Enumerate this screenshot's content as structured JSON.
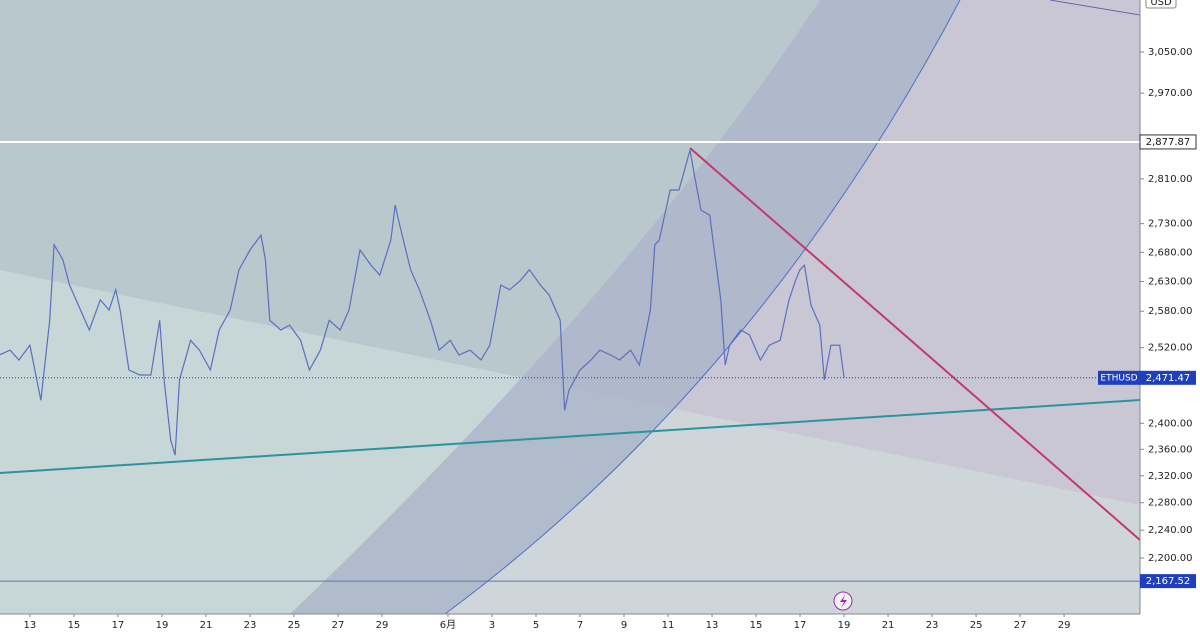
{
  "chart_data": {
    "type": "line",
    "y_axis_label": "USD",
    "log_scale": true,
    "ylim": [
      2122,
      3154
    ],
    "yticks": [
      {
        "value": 3050,
        "label": "3,050.00"
      },
      {
        "value": 2970,
        "label": "2,970.00"
      },
      {
        "value": 2810,
        "label": "2,810.00"
      },
      {
        "value": 2730,
        "label": "2,730.00"
      },
      {
        "value": 2680,
        "label": "2,680.00"
      },
      {
        "value": 2630,
        "label": "2,630.00"
      },
      {
        "value": 2580,
        "label": "2,580.00"
      },
      {
        "value": 2520,
        "label": "2,520.00"
      },
      {
        "value": 2400,
        "label": "2,400.00"
      },
      {
        "value": 2360,
        "label": "2,360.00"
      },
      {
        "value": 2320,
        "label": "2,320.00"
      },
      {
        "value": 2280,
        "label": "2,280.00"
      },
      {
        "value": 2240,
        "label": "2,240.00"
      },
      {
        "value": 2200,
        "label": "2,200.00"
      }
    ],
    "xlim": [
      -1.36,
      50.45
    ],
    "xticks": [
      {
        "value": 0,
        "label": "13"
      },
      {
        "value": 2,
        "label": "15"
      },
      {
        "value": 4,
        "label": "17"
      },
      {
        "value": 6,
        "label": "19"
      },
      {
        "value": 8,
        "label": "21"
      },
      {
        "value": 10,
        "label": "23"
      },
      {
        "value": 12,
        "label": "25"
      },
      {
        "value": 14,
        "label": "27"
      },
      {
        "value": 16,
        "label": "29"
      },
      {
        "value": 19,
        "label": "6月"
      },
      {
        "value": 21,
        "label": "3"
      },
      {
        "value": 23,
        "label": "5"
      },
      {
        "value": 25,
        "label": "7"
      },
      {
        "value": 27,
        "label": "9"
      },
      {
        "value": 29,
        "label": "11"
      },
      {
        "value": 31,
        "label": "13"
      },
      {
        "value": 33,
        "label": "15"
      },
      {
        "value": 35,
        "label": "17"
      },
      {
        "value": 37,
        "label": "19"
      },
      {
        "value": 39,
        "label": "21"
      },
      {
        "value": 41,
        "label": "23"
      },
      {
        "value": 43,
        "label": "25"
      },
      {
        "value": 45,
        "label": "27"
      },
      {
        "value": 47,
        "label": "29"
      }
    ],
    "x": [
      -1.4,
      -0.9,
      -0.5,
      0,
      0.5,
      0.9,
      1.1,
      1.5,
      1.8,
      2.3,
      2.7,
      3.2,
      3.6,
      3.9,
      4.1,
      4.5,
      5,
      5.5,
      5.9,
      6.1,
      6.4,
      6.6,
      6.8,
      7.3,
      7.7,
      8.2,
      8.6,
      9.1,
      9.5,
      10,
      10.5,
      10.7,
      10.9,
      11.4,
      11.8,
      12.3,
      12.7,
      13.2,
      13.6,
      14.1,
      14.5,
      15,
      15.5,
      15.9,
      16.4,
      16.6,
      16.8,
      17.3,
      17.7,
      18.2,
      18.6,
      19.1,
      19.5,
      20,
      20.5,
      20.9,
      21.4,
      21.8,
      22.3,
      22.7,
      23.2,
      23.6,
      24.1,
      24.3,
      24.5,
      25,
      25.5,
      25.9,
      26.4,
      26.8,
      27.3,
      27.7,
      28.2,
      28.4,
      28.6,
      29.1,
      29.5,
      30,
      30.2,
      30.5,
      30.9,
      31.1,
      31.4,
      31.6,
      31.8,
      32.3,
      32.7,
      33.2,
      33.6,
      34.1,
      34.5,
      34.8,
      35,
      35.2,
      35.5,
      35.9,
      36.1,
      36.4,
      36.8,
      37
    ],
    "series": [
      {
        "name": "ETHUSD",
        "color": "#5a6fc0",
        "values": [
          2508,
          2516,
          2500,
          2524,
          2436,
          2565,
          2693,
          2667,
          2624,
          2582,
          2549,
          2599,
          2582,
          2616,
          2582,
          2484,
          2476,
          2476,
          2565,
          2468,
          2374,
          2351,
          2468,
          2532,
          2516,
          2484,
          2549,
          2582,
          2650,
          2684,
          2710,
          2667,
          2565,
          2549,
          2557,
          2532,
          2484,
          2516,
          2565,
          2549,
          2582,
          2684,
          2658,
          2641,
          2701,
          2763,
          2728,
          2650,
          2616,
          2565,
          2516,
          2532,
          2508,
          2516,
          2500,
          2524,
          2624,
          2616,
          2632,
          2650,
          2624,
          2607,
          2565,
          2420,
          2452,
          2484,
          2500,
          2516,
          2508,
          2500,
          2516,
          2492,
          2582,
          2693,
          2701,
          2790,
          2790,
          2863,
          2817,
          2754,
          2745,
          2684,
          2599,
          2492,
          2524,
          2549,
          2541,
          2500,
          2524,
          2532,
          2599,
          2632,
          2650,
          2658,
          2590,
          2557,
          2468,
          2524,
          2524,
          2471
        ]
      }
    ],
    "last_price": {
      "value": 2471.47,
      "label": "2,471.47",
      "color": "#1f3fbf"
    },
    "levels": [
      {
        "value": 2877.87,
        "label": "2,877.87",
        "color": "#ffffff"
      },
      {
        "value": 2167.52,
        "label": "2,167.52",
        "color": "#5b78b0"
      }
    ]
  }
}
